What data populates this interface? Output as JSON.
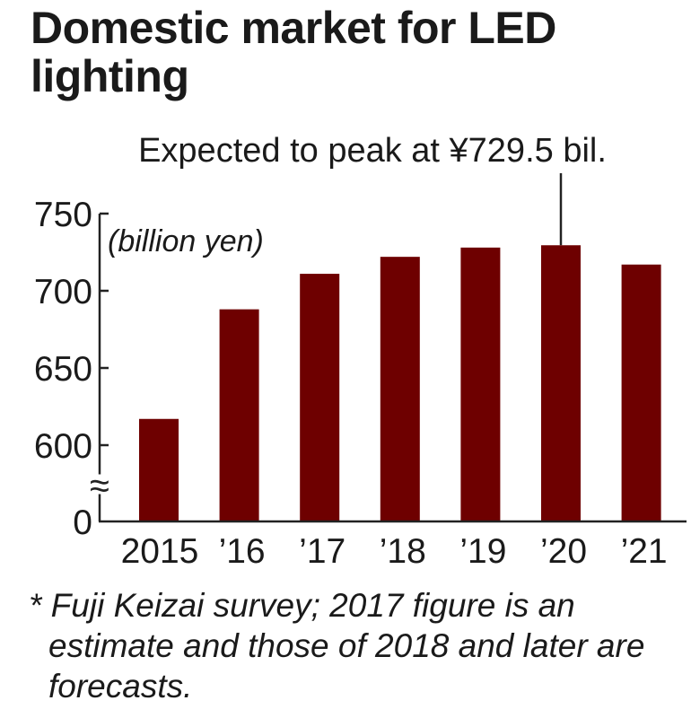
{
  "title": "Domestic market for LED lighting",
  "footnote": "* Fuji Keizai survey; 2017 figure is an estimate and those of 2018 and later are forecasts.",
  "colors": {
    "bar": "#6e0000",
    "axis": "#222222",
    "text": "#1a1a1a"
  },
  "chart_data": {
    "type": "bar",
    "title": "Domestic market for LED lighting",
    "subtitle": "",
    "xlabel": "",
    "ylabel": "(billion yen)",
    "categories": [
      "2015",
      "’16",
      "’17",
      "’18",
      "’19",
      "’20",
      "’21"
    ],
    "values": [
      617,
      688,
      711,
      722,
      728,
      729.5,
      717
    ],
    "yticks": [
      0,
      600,
      650,
      700,
      750
    ],
    "ytick_labels": [
      "0",
      "600",
      "650",
      "700",
      "750"
    ],
    "ylim": [
      0,
      750
    ],
    "axis_break": {
      "from": 0,
      "to": 600,
      "symbol": "≈"
    },
    "grid": false,
    "legend": "none",
    "annotations": [
      {
        "category": "’20",
        "value": 729.5,
        "text": "Expected to peak at ¥729.5 bil."
      }
    ],
    "notes": [
      "2017 figure is an estimate",
      "2018 and later are forecasts"
    ]
  }
}
